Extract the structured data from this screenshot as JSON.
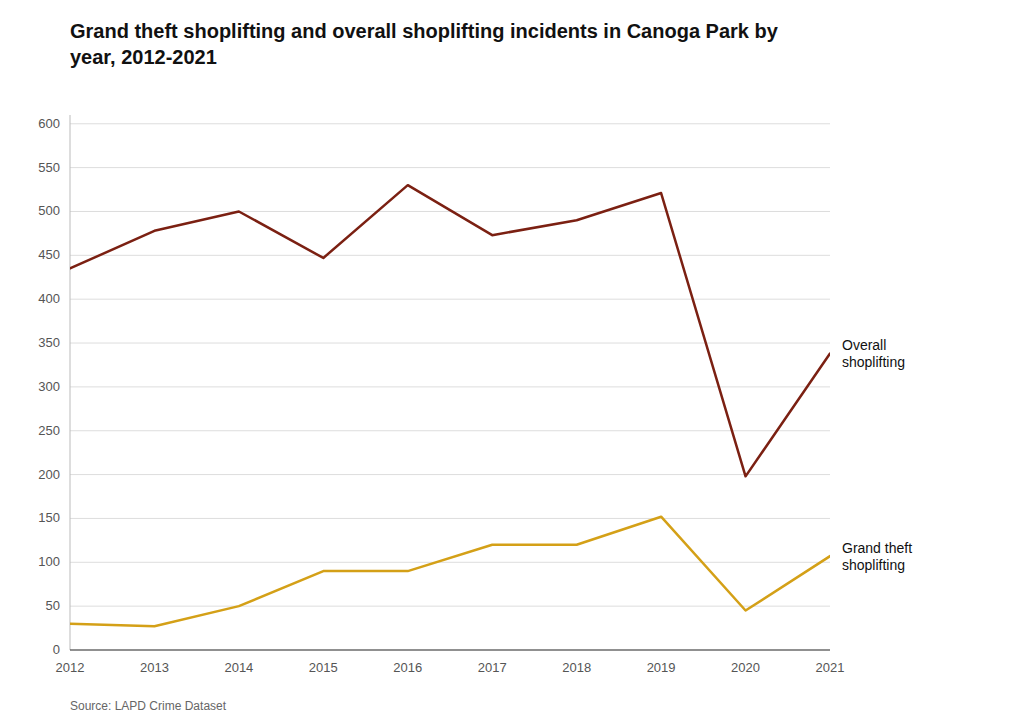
{
  "chart_data": {
    "type": "line",
    "title": "Grand theft shoplifting and overall shoplifting incidents in Canoga Park by\nyear, 2012-2021",
    "source": "Source: LAPD Crime Dataset",
    "x": [
      2012,
      2013,
      2014,
      2015,
      2016,
      2017,
      2018,
      2019,
      2020,
      2021
    ],
    "series": [
      {
        "name": "Overall\nshoplifting",
        "color": "#7B2012",
        "values": [
          435,
          478,
          500,
          447,
          530,
          473,
          490,
          521,
          198,
          338
        ]
      },
      {
        "name": "Grand theft\nshoplifting",
        "color": "#D4A017",
        "values": [
          30,
          27,
          50,
          90,
          90,
          120,
          120,
          152,
          45,
          107
        ]
      }
    ],
    "xlim": [
      2012,
      2021
    ],
    "xticks": [
      2012,
      2013,
      2014,
      2015,
      2016,
      2017,
      2018,
      2019,
      2020,
      2021
    ],
    "ylim": [
      0,
      610
    ],
    "yticks": [
      0,
      50,
      100,
      150,
      200,
      250,
      300,
      350,
      400,
      450,
      500,
      550,
      600
    ],
    "grid": true
  }
}
